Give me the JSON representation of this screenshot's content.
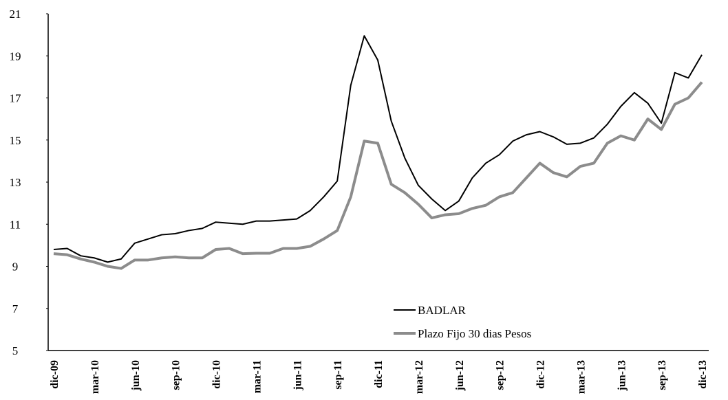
{
  "chart_data": {
    "type": "line",
    "categories": [
      "dic-09",
      null,
      null,
      "mar-10",
      null,
      null,
      "jun-10",
      null,
      null,
      "sep-10",
      null,
      null,
      "dic-10",
      null,
      null,
      "mar-11",
      null,
      null,
      "jun-11",
      null,
      null,
      "sep-11",
      null,
      null,
      "dic-11",
      null,
      null,
      "mar-12",
      null,
      null,
      "jun-12",
      null,
      null,
      "sep-12",
      null,
      null,
      "dic-12",
      null,
      null,
      "mar-13",
      null,
      null,
      "jun-13",
      null,
      null,
      "sep-13",
      null,
      null,
      "dic-13"
    ],
    "series": [
      {
        "name": "BADLAR",
        "color": "#000000",
        "values": [
          9.8,
          9.85,
          9.5,
          9.4,
          9.2,
          9.35,
          10.1,
          10.3,
          10.5,
          10.55,
          10.7,
          10.8,
          11.1,
          11.05,
          11.0,
          11.15,
          11.15,
          11.2,
          11.25,
          11.65,
          12.3,
          13.05,
          17.6,
          19.95,
          18.8,
          15.9,
          14.15,
          12.85,
          12.2,
          11.65,
          12.1,
          13.2,
          13.9,
          14.3,
          14.95,
          15.25,
          15.4,
          15.15,
          14.8,
          14.85,
          15.1,
          15.75,
          16.6,
          17.25,
          16.75,
          15.8,
          18.2,
          17.95,
          19.05
        ]
      },
      {
        "name": "Plazo Fijo 30 dias Pesos",
        "color": "#8c8c8c",
        "values": [
          9.6,
          9.55,
          9.35,
          9.2,
          9.0,
          8.9,
          9.3,
          9.3,
          9.4,
          9.45,
          9.4,
          9.4,
          9.8,
          9.85,
          9.6,
          9.62,
          9.62,
          9.85,
          9.85,
          9.95,
          10.3,
          10.7,
          12.3,
          14.95,
          14.85,
          12.9,
          12.5,
          11.95,
          11.3,
          11.45,
          11.5,
          11.75,
          11.9,
          12.3,
          12.5,
          13.2,
          13.9,
          13.45,
          13.25,
          13.75,
          13.9,
          14.85,
          15.2,
          15.0,
          16.0,
          15.5,
          16.7,
          17.0,
          17.75
        ]
      }
    ],
    "ylim": [
      5,
      21
    ],
    "yticks": [
      5,
      7,
      9,
      11,
      13,
      15,
      17,
      19,
      21
    ]
  }
}
